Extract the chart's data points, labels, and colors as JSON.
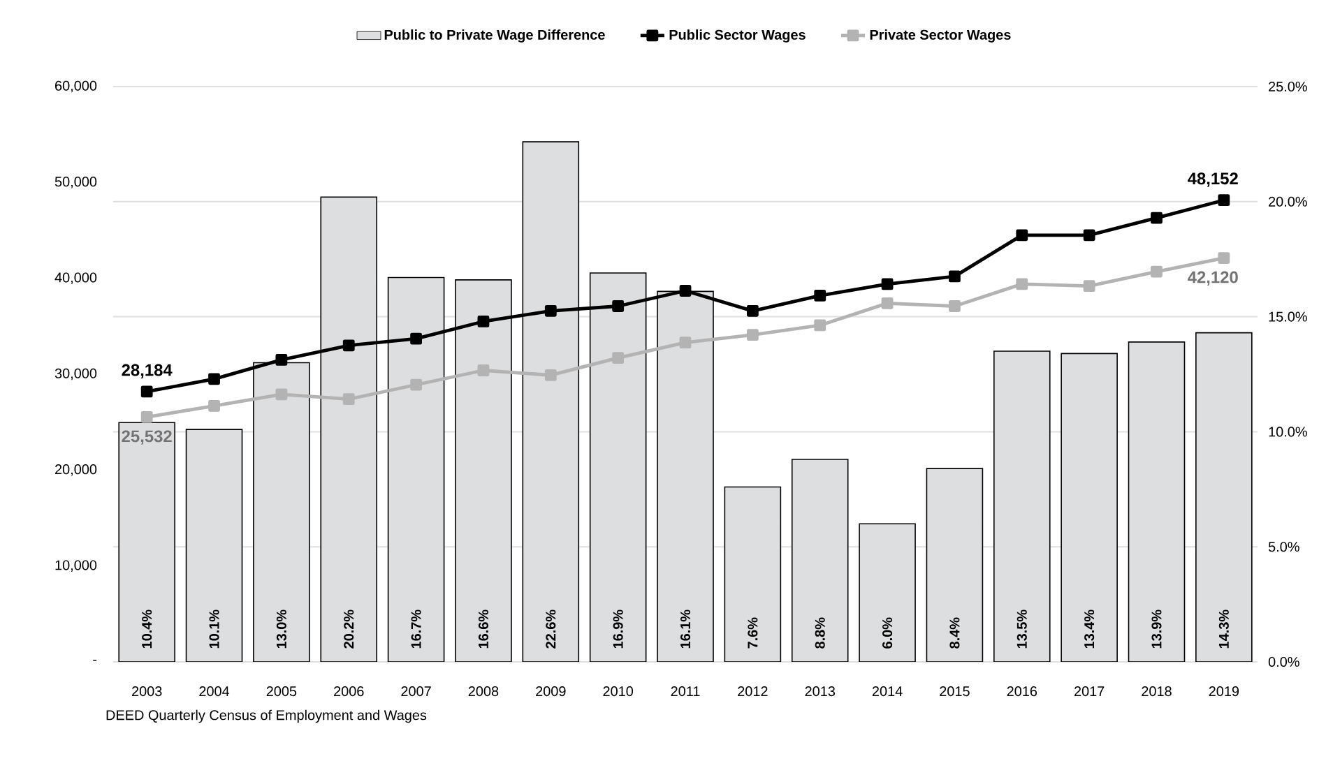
{
  "chart_data": {
    "type": "bar",
    "categories": [
      "2003",
      "2004",
      "2005",
      "2006",
      "2007",
      "2008",
      "2009",
      "2010",
      "2011",
      "2012",
      "2013",
      "2014",
      "2015",
      "2016",
      "2017",
      "2018",
      "2019"
    ],
    "series": [
      {
        "name": "Public to Private Wage Difference",
        "axis": "y2",
        "color": "#dddee0",
        "values": [
          10.4,
          10.1,
          13.0,
          20.2,
          16.7,
          16.6,
          22.6,
          16.9,
          16.1,
          7.6,
          8.8,
          6.0,
          8.4,
          13.5,
          13.4,
          13.9,
          14.3
        ],
        "value_labels": [
          "10.4%",
          "10.1%",
          "13.0%",
          "20.2%",
          "16.7%",
          "16.6%",
          "22.6%",
          "16.9%",
          "16.1%",
          "7.6%",
          "8.8%",
          "6.0%",
          "8.4%",
          "13.5%",
          "13.4%",
          "13.9%",
          "14.3%"
        ]
      },
      {
        "name": "Public Sector Wages",
        "type": "line",
        "color": "#000000",
        "values": [
          28184,
          29500,
          31500,
          33000,
          33700,
          35500,
          36600,
          37100,
          38700,
          36600,
          38200,
          39400,
          40200,
          44500,
          44500,
          46300,
          48152
        ],
        "value_labels": [
          "28,184",
          null,
          null,
          null,
          null,
          null,
          null,
          null,
          null,
          null,
          null,
          null,
          null,
          null,
          null,
          null,
          "48,152"
        ]
      },
      {
        "name": "Private Sector Wages",
        "type": "line",
        "color": "#b3b3b3",
        "values": [
          25532,
          26700,
          27900,
          27400,
          28900,
          30400,
          29900,
          31700,
          33300,
          34100,
          35100,
          37400,
          37100,
          39400,
          39200,
          40700,
          42120
        ],
        "value_labels": [
          "25,532",
          null,
          null,
          null,
          null,
          null,
          null,
          null,
          null,
          null,
          null,
          null,
          null,
          null,
          null,
          null,
          "42,120"
        ]
      }
    ],
    "ylim": [
      0,
      60000
    ],
    "yticks": [
      {
        "value": 0,
        "label": "-"
      },
      {
        "value": 10000,
        "label": "10,000"
      },
      {
        "value": 20000,
        "label": "20,000"
      },
      {
        "value": 30000,
        "label": "30,000"
      },
      {
        "value": 40000,
        "label": "40,000"
      },
      {
        "value": 50000,
        "label": "50,000"
      },
      {
        "value": 60000,
        "label": "60,000"
      }
    ],
    "y2lim": [
      0,
      25
    ],
    "y2ticks": [
      {
        "value": 0,
        "label": "0.0%"
      },
      {
        "value": 5,
        "label": "5.0%"
      },
      {
        "value": 10,
        "label": "10.0%"
      },
      {
        "value": 15,
        "label": "15.0%"
      },
      {
        "value": 20,
        "label": "20.0%"
      },
      {
        "value": 25,
        "label": "25.0%"
      }
    ],
    "grid": "y",
    "legend": "top",
    "marker": "square",
    "annotations": [
      "DEED Quarterly Census of Employment and Wages"
    ]
  }
}
